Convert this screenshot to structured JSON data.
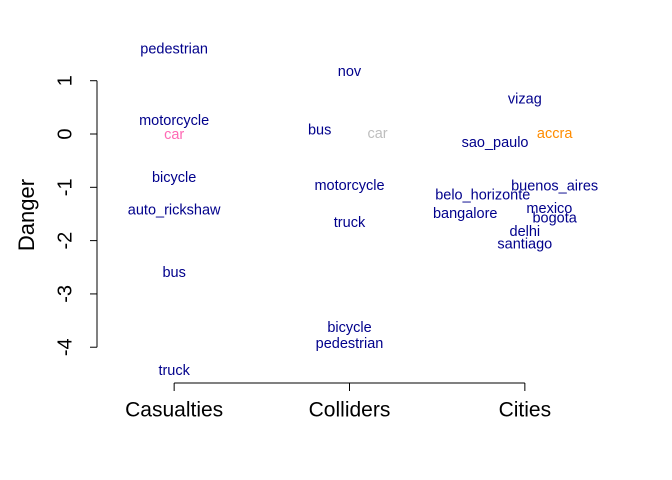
{
  "chart_data": {
    "type": "scatter",
    "ylabel": "Danger",
    "xlim": [
      0.56,
      3.44
    ],
    "ylim": [
      -4.69,
      1.82
    ],
    "xticks": [
      {
        "value": 1,
        "label": "Casualties"
      },
      {
        "value": 2,
        "label": "Colliders"
      },
      {
        "value": 3,
        "label": "Cities"
      }
    ],
    "yticks": [
      -4,
      -3,
      -2,
      -1,
      0,
      1
    ],
    "points": [
      {
        "label": "pedestrian",
        "x": 1,
        "y": 1.58,
        "color": "#00008b"
      },
      {
        "label": "motorcycle",
        "x": 1,
        "y": 0.24,
        "color": "#00008b"
      },
      {
        "label": "car",
        "x": 1,
        "y": -0.02,
        "color": "#ff69b4"
      },
      {
        "label": "bicycle",
        "x": 1,
        "y": -0.83,
        "color": "#00008b"
      },
      {
        "label": "auto_rickshaw",
        "x": 1,
        "y": -1.44,
        "color": "#00008b"
      },
      {
        "label": "bus",
        "x": 1,
        "y": -2.61,
        "color": "#00008b"
      },
      {
        "label": "truck",
        "x": 1,
        "y": -4.45,
        "color": "#00008b"
      },
      {
        "label": "nov",
        "x": 2,
        "y": 1.16,
        "color": "#00008b"
      },
      {
        "label": "bus",
        "x": 1.83,
        "y": 0.06,
        "color": "#00008b"
      },
      {
        "label": "car",
        "x": 2.16,
        "y": 0,
        "color": "#bebebe"
      },
      {
        "label": "motorcycle",
        "x": 2,
        "y": -0.98,
        "color": "#00008b"
      },
      {
        "label": "truck",
        "x": 2,
        "y": -1.67,
        "color": "#00008b"
      },
      {
        "label": "bicycle",
        "x": 2,
        "y": -3.64,
        "color": "#00008b"
      },
      {
        "label": "pedestrian",
        "x": 2,
        "y": -3.94,
        "color": "#00008b"
      },
      {
        "label": "vizag",
        "x": 3,
        "y": 0.64,
        "color": "#00008b"
      },
      {
        "label": "accra",
        "x": 3.17,
        "y": 0,
        "color": "#ff8c00"
      },
      {
        "label": "sao_paulo",
        "x": 2.83,
        "y": -0.17,
        "color": "#00008b"
      },
      {
        "label": "buenos_aires",
        "x": 3.17,
        "y": -0.99,
        "color": "#00008b"
      },
      {
        "label": "belo_horizonte",
        "x": 2.76,
        "y": -1.16,
        "color": "#00008b"
      },
      {
        "label": "mexico",
        "x": 3.14,
        "y": -1.41,
        "color": "#00008b"
      },
      {
        "label": "bangalore",
        "x": 2.66,
        "y": -1.5,
        "color": "#00008b"
      },
      {
        "label": "bogota",
        "x": 3.17,
        "y": -1.59,
        "color": "#00008b"
      },
      {
        "label": "delhi",
        "x": 3,
        "y": -1.84,
        "color": "#00008b"
      },
      {
        "label": "santiago",
        "x": 3,
        "y": -2.08,
        "color": "#00008b"
      }
    ]
  }
}
